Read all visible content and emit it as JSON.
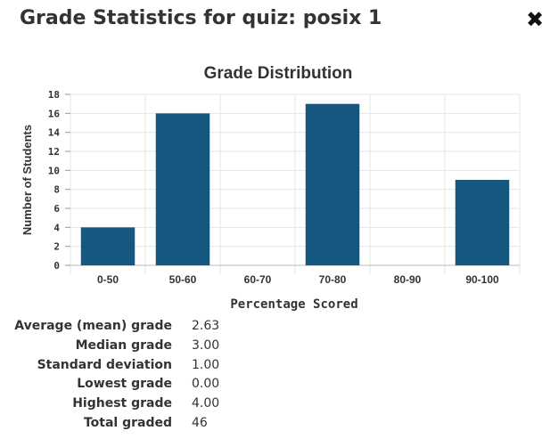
{
  "dialog": {
    "title": "Grade Statistics for quiz: posix 1",
    "close_icon": "✖"
  },
  "chart_data": {
    "type": "bar",
    "title": "Grade Distribution",
    "xlabel": "Percentage Scored",
    "ylabel": "Number of Students",
    "categories": [
      "0-50",
      "50-60",
      "60-70",
      "70-80",
      "80-90",
      "90-100"
    ],
    "values": [
      4,
      16,
      0,
      17,
      0,
      9
    ],
    "ylim": [
      0,
      18
    ],
    "yticks": [
      0,
      2,
      4,
      6,
      8,
      10,
      12,
      14,
      16,
      18
    ],
    "bar_color": "#15577e",
    "grid": true
  },
  "stats": [
    {
      "label": "Average (mean) grade",
      "value": "2.63"
    },
    {
      "label": "Median grade",
      "value": "3.00"
    },
    {
      "label": "Standard deviation",
      "value": "1.00"
    },
    {
      "label": "Lowest grade",
      "value": "0.00"
    },
    {
      "label": "Highest grade",
      "value": "4.00"
    },
    {
      "label": "Total graded",
      "value": "46"
    }
  ]
}
